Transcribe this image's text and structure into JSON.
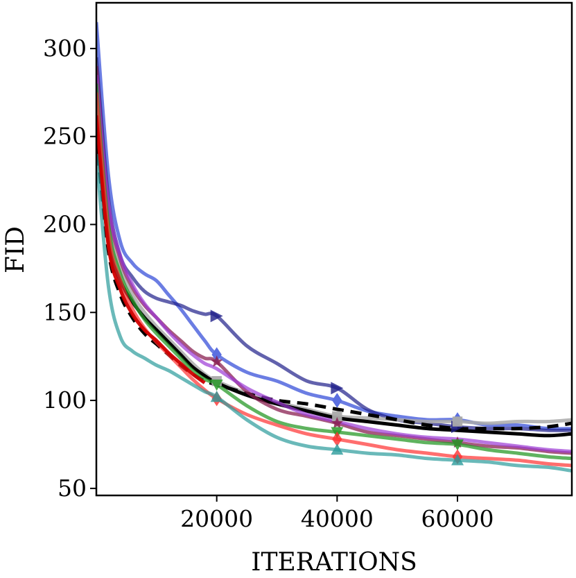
{
  "chart_data": {
    "type": "line",
    "title": "",
    "xlabel": "ITERATIONS",
    "ylabel": "FID",
    "xlim": [
      0,
      79000
    ],
    "ylim": [
      46,
      326
    ],
    "xticks": [
      20000,
      40000,
      60000
    ],
    "yticks": [
      50,
      100,
      150,
      200,
      250,
      300
    ],
    "grid": false,
    "legend": "none",
    "series": [
      {
        "color": "#5b6fe0",
        "opacity": 0.9,
        "width": 5,
        "dash": "",
        "marker": "diamond",
        "x": [
          0,
          2000,
          4000,
          6000,
          8000,
          10000,
          12000,
          14000,
          16000,
          18000,
          20000,
          25000,
          30000,
          35000,
          40000,
          45000,
          50000,
          55000,
          60000,
          65000,
          70000,
          75000,
          79000
        ],
        "y": [
          315,
          228,
          190,
          178,
          172,
          168,
          160,
          152,
          143,
          134,
          126,
          116,
          111,
          104,
          100,
          94,
          91,
          89,
          89,
          86,
          86,
          84,
          84
        ],
        "marker_x": [
          20000,
          40000,
          60000
        ],
        "marker_y": [
          126,
          100,
          89
        ]
      },
      {
        "color": "#1f1f8a",
        "opacity": 0.7,
        "width": 5,
        "dash": "",
        "marker": "triangle-right",
        "x": [
          0,
          2000,
          4000,
          6000,
          8000,
          10000,
          12000,
          14000,
          16000,
          18000,
          20000,
          25000,
          30000,
          35000,
          40000,
          45000,
          50000,
          55000,
          60000,
          65000,
          70000,
          75000,
          79000
        ],
        "y": [
          295,
          215,
          182,
          170,
          162,
          158,
          156,
          154,
          151,
          149,
          148,
          131,
          121,
          111,
          107,
          95,
          89,
          87,
          85,
          84,
          84,
          83,
          83
        ],
        "marker_x": [
          20000,
          40000,
          60000
        ],
        "marker_y": [
          148,
          107,
          85
        ]
      },
      {
        "color": "#aaaaaa",
        "opacity": 0.85,
        "width": 5,
        "dash": "",
        "marker": "square",
        "x": [
          0,
          2000,
          4000,
          6000,
          8000,
          10000,
          12000,
          14000,
          16000,
          18000,
          20000,
          25000,
          30000,
          35000,
          40000,
          45000,
          50000,
          55000,
          60000,
          65000,
          70000,
          75000,
          79000
        ],
        "y": [
          270,
          200,
          175,
          160,
          150,
          142,
          135,
          128,
          121,
          115,
          111,
          104,
          99,
          95,
          91,
          90,
          89,
          88,
          88,
          87,
          88,
          88,
          89
        ],
        "marker_x": [
          20000,
          40000,
          60000
        ],
        "marker_y": [
          111,
          91,
          88
        ]
      },
      {
        "color": "#000000",
        "opacity": 1,
        "width": 5,
        "dash": "",
        "marker": "none",
        "x": [
          0,
          2000,
          4000,
          6000,
          8000,
          10000,
          12000,
          14000,
          16000,
          18000,
          20000,
          25000,
          30000,
          35000,
          40000,
          45000,
          50000,
          55000,
          60000,
          65000,
          70000,
          75000,
          79000
        ],
        "y": [
          255,
          190,
          168,
          156,
          147,
          140,
          133,
          126,
          119,
          114,
          110,
          103,
          98,
          94,
          90,
          88,
          86,
          84,
          83,
          82,
          81,
          80,
          81
        ],
        "marker_x": [],
        "marker_y": []
      },
      {
        "color": "#000000",
        "opacity": 1,
        "width": 5,
        "dash": "16,10",
        "marker": "none",
        "x": [
          0,
          2000,
          4000,
          6000,
          8000,
          10000,
          12000,
          14000,
          16000,
          18000,
          20000,
          25000,
          30000,
          35000,
          40000,
          45000,
          50000,
          55000,
          60000,
          65000,
          70000,
          75000,
          79000
        ],
        "y": [
          250,
          185,
          160,
          147,
          138,
          132,
          126,
          120,
          115,
          111,
          109,
          104,
          100,
          98,
          95,
          92,
          89,
          86,
          84,
          84,
          84,
          85,
          87
        ],
        "marker_x": [],
        "marker_y": []
      },
      {
        "color": "#8a2051",
        "opacity": 0.75,
        "width": 5,
        "dash": "",
        "marker": "star",
        "x": [
          0,
          2000,
          4000,
          6000,
          8000,
          10000,
          12000,
          14000,
          16000,
          18000,
          20000,
          25000,
          30000,
          35000,
          40000,
          45000,
          50000,
          55000,
          60000,
          65000,
          70000,
          75000,
          79000
        ],
        "y": [
          290,
          210,
          180,
          164,
          154,
          147,
          140,
          134,
          128,
          124,
          122,
          105,
          95,
          91,
          87,
          82,
          80,
          78,
          76,
          74,
          73,
          71,
          70
        ],
        "marker_x": [
          20000,
          40000,
          60000
        ],
        "marker_y": [
          122,
          87,
          76
        ]
      },
      {
        "color": "#9b3bd6",
        "opacity": 0.7,
        "width": 5,
        "dash": "",
        "marker": "none",
        "x": [
          0,
          2000,
          4000,
          6000,
          8000,
          10000,
          12000,
          14000,
          16000,
          18000,
          20000,
          25000,
          30000,
          35000,
          40000,
          45000,
          50000,
          55000,
          60000,
          65000,
          70000,
          75000,
          79000
        ],
        "y": [
          285,
          212,
          182,
          166,
          155,
          147,
          139,
          132,
          126,
          121,
          118,
          107,
          99,
          92,
          88,
          84,
          81,
          79,
          78,
          76,
          74,
          72,
          71
        ],
        "marker_x": [],
        "marker_y": []
      },
      {
        "color": "#2a9a2a",
        "opacity": 0.75,
        "width": 5,
        "dash": "",
        "marker": "triangle-down",
        "x": [
          0,
          2000,
          4000,
          6000,
          8000,
          10000,
          12000,
          14000,
          16000,
          18000,
          20000,
          25000,
          30000,
          35000,
          40000,
          45000,
          50000,
          55000,
          60000,
          65000,
          70000,
          75000,
          79000
        ],
        "y": [
          280,
          200,
          172,
          157,
          146,
          138,
          131,
          124,
          117,
          112,
          109,
          97,
          88,
          84,
          82,
          80,
          78,
          76,
          75,
          72,
          70,
          68,
          67
        ],
        "marker_x": [
          20000,
          40000,
          60000
        ],
        "marker_y": [
          109,
          82,
          75
        ]
      },
      {
        "color": "#ff3030",
        "opacity": 0.7,
        "width": 5,
        "dash": "",
        "marker": "diamond",
        "x": [
          0,
          2000,
          4000,
          6000,
          8000,
          10000,
          12000,
          14000,
          16000,
          18000,
          20000,
          25000,
          30000,
          35000,
          40000,
          45000,
          50000,
          55000,
          60000,
          65000,
          70000,
          75000,
          79000
        ],
        "y": [
          275,
          195,
          168,
          152,
          141,
          133,
          126,
          119,
          112,
          106,
          101,
          92,
          86,
          81,
          78,
          75,
          72,
          70,
          68,
          67,
          66,
          64,
          63
        ],
        "marker_x": [
          20000,
          40000,
          60000
        ],
        "marker_y": [
          101,
          78,
          68
        ]
      },
      {
        "color": "#d00000",
        "opacity": 0.95,
        "width": 5,
        "dash": "",
        "marker": "none",
        "x": [
          0,
          2000,
          4000,
          6000,
          8000,
          10000,
          12000,
          14000,
          16000,
          18000
        ],
        "y": [
          262,
          188,
          163,
          149,
          140,
          134,
          127,
          121,
          115,
          110
        ],
        "marker_x": [],
        "marker_y": []
      },
      {
        "color": "#2b9b9b",
        "opacity": 0.7,
        "width": 5,
        "dash": "",
        "marker": "triangle-up",
        "x": [
          0,
          2000,
          4000,
          6000,
          8000,
          10000,
          12000,
          14000,
          16000,
          18000,
          20000,
          25000,
          30000,
          35000,
          40000,
          45000,
          50000,
          55000,
          60000,
          65000,
          70000,
          75000,
          79000
        ],
        "y": [
          240,
          165,
          136,
          128,
          124,
          120,
          117,
          113,
          109,
          105,
          102,
          89,
          79,
          74,
          72,
          70,
          69,
          67,
          66,
          65,
          63,
          62,
          60
        ],
        "marker_x": [
          20000,
          40000,
          60000
        ],
        "marker_y": [
          102,
          72,
          66
        ]
      }
    ]
  }
}
